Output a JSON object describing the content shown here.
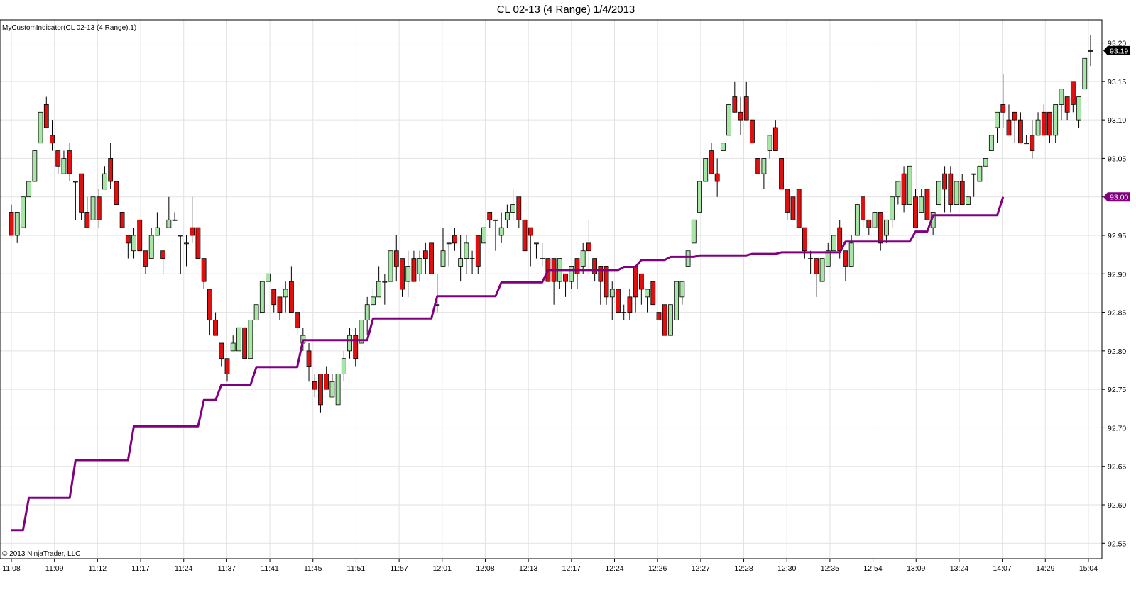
{
  "chart_title": "CL 02-13 (4 Range)  1/4/2013",
  "indicator_label": "MyCustomIndicator(CL 02-13 (4 Range),1)",
  "copyright": "© 2013 NinjaTrader, LLC",
  "price_badge": "93.19",
  "indicator_badge": "93.00",
  "colors": {
    "up": "#a8e6a8",
    "down": "#e01010",
    "indicator": "#800080",
    "grid": "#e2e2e2",
    "badge": "#000000",
    "indicator_badge": "#800080"
  },
  "chart_data": {
    "type": "candlestick",
    "ylim": [
      92.53,
      93.23
    ],
    "yticks": [
      92.55,
      92.6,
      92.65,
      92.7,
      92.75,
      92.8,
      92.85,
      92.9,
      92.95,
      93.0,
      93.05,
      93.1,
      93.15,
      93.2
    ],
    "xticks": [
      "11:08",
      "11:09",
      "11:12",
      "11:17",
      "11:24",
      "11:37",
      "11:41",
      "11:45",
      "11:51",
      "11:57",
      "12:01",
      "12:08",
      "12:13",
      "12:17",
      "12:24",
      "12:26",
      "12:27",
      "12:28",
      "12:30",
      "12:35",
      "12:54",
      "13:09",
      "13:24",
      "14:07",
      "14:29",
      "15:04"
    ],
    "candles": [
      [
        92.98,
        92.95,
        92.99,
        92.95
      ],
      [
        92.95,
        92.98,
        92.98,
        92.94
      ],
      [
        92.96,
        93.0,
        93.0,
        92.96
      ],
      [
        93.0,
        93.02,
        93.02,
        93.0
      ],
      [
        93.02,
        93.06,
        93.06,
        93.02
      ],
      [
        93.07,
        93.11,
        93.11,
        93.07
      ],
      [
        93.12,
        93.09,
        93.13,
        93.09
      ],
      [
        93.08,
        93.07,
        93.1,
        93.06
      ],
      [
        93.06,
        93.04,
        93.06,
        93.03
      ],
      [
        93.03,
        93.05,
        93.06,
        93.03
      ],
      [
        93.06,
        93.03,
        93.07,
        93.02
      ],
      [
        93.02,
        93.02,
        93.02,
        92.97
      ],
      [
        93.03,
        92.98,
        93.03,
        92.97
      ],
      [
        92.98,
        92.96,
        93.0,
        92.96
      ],
      [
        92.97,
        93.0,
        93.0,
        92.97
      ],
      [
        93.0,
        92.97,
        93.01,
        92.96
      ],
      [
        93.01,
        93.03,
        93.04,
        93.01
      ],
      [
        93.05,
        93.02,
        93.07,
        93.01
      ],
      [
        93.02,
        92.99,
        93.02,
        92.99
      ],
      [
        92.98,
        92.96,
        92.98,
        92.96
      ],
      [
        92.95,
        92.94,
        92.95,
        92.92
      ],
      [
        92.93,
        92.95,
        92.96,
        92.92
      ],
      [
        92.97,
        92.93,
        92.97,
        92.93
      ],
      [
        92.93,
        92.91,
        92.93,
        92.9
      ],
      [
        92.92,
        92.95,
        92.96,
        92.92
      ],
      [
        92.95,
        92.96,
        92.98,
        92.95
      ],
      [
        92.93,
        92.92,
        92.93,
        92.9
      ],
      [
        92.96,
        92.97,
        93.0,
        92.96
      ],
      [
        92.97,
        92.97,
        92.98,
        92.97
      ],
      [
        92.95,
        92.95,
        92.95,
        92.9
      ],
      [
        92.94,
        92.94,
        92.95,
        92.91
      ],
      [
        92.96,
        92.95,
        93.0,
        92.94
      ],
      [
        92.96,
        92.92,
        92.96,
        92.92
      ],
      [
        92.92,
        92.89,
        92.92,
        92.88
      ],
      [
        92.88,
        92.84,
        92.88,
        92.82
      ],
      [
        92.84,
        92.82,
        92.85,
        92.82
      ],
      [
        92.81,
        92.79,
        92.81,
        92.78
      ],
      [
        92.79,
        92.77,
        92.79,
        92.76
      ],
      [
        92.8,
        92.81,
        92.82,
        92.8
      ],
      [
        92.8,
        92.83,
        92.83,
        92.8
      ],
      [
        92.83,
        92.79,
        92.83,
        92.79
      ],
      [
        92.79,
        92.84,
        92.84,
        92.79
      ],
      [
        92.84,
        92.86,
        92.86,
        92.84
      ],
      [
        92.85,
        92.89,
        92.89,
        92.85
      ],
      [
        92.89,
        92.9,
        92.92,
        92.89
      ],
      [
        92.88,
        92.86,
        92.88,
        92.85
      ],
      [
        92.87,
        92.85,
        92.87,
        92.84
      ],
      [
        92.87,
        92.88,
        92.89,
        92.85
      ],
      [
        92.89,
        92.85,
        92.91,
        92.85
      ],
      [
        92.85,
        92.83,
        92.85,
        92.82
      ],
      [
        92.81,
        92.82,
        92.83,
        92.8
      ],
      [
        92.8,
        92.78,
        92.81,
        92.76
      ],
      [
        92.76,
        92.75,
        92.77,
        92.74
      ],
      [
        92.77,
        92.73,
        92.77,
        92.72
      ],
      [
        92.77,
        92.75,
        92.78,
        92.75
      ],
      [
        92.74,
        92.76,
        92.77,
        92.74
      ],
      [
        92.73,
        92.77,
        92.77,
        92.73
      ],
      [
        92.77,
        92.79,
        92.8,
        92.76
      ],
      [
        92.8,
        92.82,
        92.83,
        92.79
      ],
      [
        92.82,
        92.79,
        92.83,
        92.78
      ],
      [
        92.81,
        92.84,
        92.84,
        92.81
      ],
      [
        92.84,
        92.86,
        92.87,
        92.82
      ],
      [
        92.86,
        92.87,
        92.88,
        92.86
      ],
      [
        92.87,
        92.89,
        92.91,
        92.87
      ],
      [
        92.89,
        92.89,
        92.9,
        92.86
      ],
      [
        92.89,
        92.93,
        92.93,
        92.89
      ],
      [
        92.93,
        92.91,
        92.95,
        92.89
      ],
      [
        92.92,
        92.88,
        92.92,
        92.87
      ],
      [
        92.89,
        92.91,
        92.93,
        92.87
      ],
      [
        92.92,
        92.89,
        92.93,
        92.89
      ],
      [
        92.9,
        92.92,
        92.93,
        92.89
      ],
      [
        92.93,
        92.92,
        92.94,
        92.9
      ],
      [
        92.94,
        92.9,
        92.94,
        92.9
      ],
      [
        92.86,
        92.86,
        92.9,
        92.85
      ],
      [
        92.91,
        92.93,
        92.96,
        92.91
      ],
      [
        92.94,
        92.94,
        92.94,
        92.91
      ],
      [
        92.95,
        92.94,
        92.96,
        92.93
      ],
      [
        92.91,
        92.92,
        92.95,
        92.89
      ],
      [
        92.92,
        92.94,
        92.95,
        92.9
      ],
      [
        92.92,
        92.92,
        92.93,
        92.9
      ],
      [
        92.95,
        92.91,
        92.95,
        92.9
      ],
      [
        92.94,
        92.96,
        92.97,
        92.94
      ],
      [
        92.98,
        92.97,
        92.98,
        92.96
      ],
      [
        92.97,
        92.97,
        92.97,
        92.93
      ],
      [
        92.95,
        92.96,
        92.98,
        92.94
      ],
      [
        92.97,
        92.98,
        92.99,
        92.96
      ],
      [
        92.98,
        92.99,
        93.01,
        92.97
      ],
      [
        93.0,
        92.97,
        93.0,
        92.96
      ],
      [
        92.97,
        92.93,
        92.97,
        92.93
      ],
      [
        92.96,
        92.95,
        92.96,
        92.91
      ],
      [
        92.94,
        92.94,
        92.94,
        92.92
      ],
      [
        92.92,
        92.92,
        92.94,
        92.91
      ],
      [
        92.92,
        92.89,
        92.92,
        92.89
      ],
      [
        92.92,
        92.89,
        92.92,
        92.86
      ],
      [
        92.89,
        92.92,
        92.92,
        92.88
      ],
      [
        92.9,
        92.89,
        92.9,
        92.87
      ],
      [
        92.89,
        92.91,
        92.91,
        92.88
      ],
      [
        92.92,
        92.9,
        92.92,
        92.88
      ],
      [
        92.91,
        92.93,
        92.94,
        92.9
      ],
      [
        92.94,
        92.93,
        92.97,
        92.9
      ],
      [
        92.92,
        92.9,
        92.92,
        92.89
      ],
      [
        92.91,
        92.89,
        92.91,
        92.86
      ],
      [
        92.91,
        92.87,
        92.91,
        92.86
      ],
      [
        92.87,
        92.88,
        92.89,
        92.84
      ],
      [
        92.88,
        92.85,
        92.89,
        92.85
      ],
      [
        92.85,
        92.85,
        92.86,
        92.84
      ],
      [
        92.87,
        92.85,
        92.88,
        92.84
      ],
      [
        92.91,
        92.87,
        92.91,
        92.85
      ],
      [
        92.9,
        92.88,
        92.9,
        92.86
      ],
      [
        92.87,
        92.88,
        92.88,
        92.85
      ],
      [
        92.89,
        92.86,
        92.89,
        92.86
      ],
      [
        92.85,
        92.84,
        92.85,
        92.84
      ],
      [
        92.86,
        92.82,
        92.86,
        92.82
      ],
      [
        92.82,
        92.86,
        92.86,
        92.82
      ],
      [
        92.84,
        92.89,
        92.89,
        92.84
      ],
      [
        92.87,
        92.89,
        92.89,
        92.86
      ],
      [
        92.91,
        92.93,
        92.93,
        92.91
      ],
      [
        92.94,
        92.97,
        92.97,
        92.94
      ],
      [
        92.98,
        93.02,
        93.02,
        92.98
      ],
      [
        93.02,
        93.05,
        93.05,
        93.02
      ],
      [
        93.06,
        93.03,
        93.07,
        93.03
      ],
      [
        93.03,
        93.02,
        93.05,
        93.0
      ],
      [
        93.06,
        93.07,
        93.07,
        93.06
      ],
      [
        93.08,
        93.12,
        93.12,
        93.08
      ],
      [
        93.13,
        93.11,
        93.15,
        93.11
      ],
      [
        93.11,
        93.1,
        93.13,
        93.08
      ],
      [
        93.13,
        93.1,
        93.15,
        93.1
      ],
      [
        93.1,
        93.07,
        93.1,
        93.07
      ],
      [
        93.05,
        93.03,
        93.05,
        93.03
      ],
      [
        93.03,
        93.05,
        93.05,
        93.01
      ],
      [
        93.06,
        93.08,
        93.08,
        93.05
      ],
      [
        93.09,
        93.06,
        93.1,
        93.06
      ],
      [
        93.05,
        93.01,
        93.05,
        93.01
      ],
      [
        93.01,
        92.98,
        93.01,
        92.97
      ],
      [
        93.0,
        92.97,
        93.0,
        92.97
      ],
      [
        93.01,
        92.96,
        93.01,
        92.96
      ],
      [
        92.96,
        92.93,
        92.96,
        92.92
      ],
      [
        92.92,
        92.92,
        92.93,
        92.9
      ],
      [
        92.92,
        92.9,
        92.92,
        92.87
      ],
      [
        92.89,
        92.92,
        92.92,
        92.89
      ],
      [
        92.91,
        92.93,
        92.94,
        92.91
      ],
      [
        92.93,
        92.95,
        92.95,
        92.93
      ],
      [
        92.96,
        92.93,
        92.97,
        92.92
      ],
      [
        92.93,
        92.91,
        92.93,
        92.89
      ],
      [
        92.91,
        92.94,
        92.95,
        92.91
      ],
      [
        92.95,
        92.99,
        92.99,
        92.95
      ],
      [
        93.0,
        92.97,
        93.0,
        92.96
      ],
      [
        92.97,
        92.96,
        92.97,
        92.95
      ],
      [
        92.96,
        92.98,
        92.98,
        92.96
      ],
      [
        92.98,
        92.94,
        92.98,
        92.93
      ],
      [
        92.95,
        92.97,
        92.97,
        92.94
      ],
      [
        92.97,
        93.0,
        93.0,
        92.96
      ],
      [
        93.0,
        93.02,
        93.02,
        92.99
      ],
      [
        93.03,
        92.99,
        93.04,
        92.98
      ],
      [
        92.99,
        93.04,
        93.04,
        92.99
      ],
      [
        93.0,
        92.96,
        93.01,
        92.96
      ],
      [
        92.98,
        93.0,
        93.01,
        92.98
      ],
      [
        93.01,
        92.97,
        93.01,
        92.97
      ],
      [
        92.96,
        92.98,
        92.98,
        92.95
      ],
      [
        92.99,
        93.02,
        93.02,
        92.99
      ],
      [
        93.03,
        93.01,
        93.04,
        92.98
      ],
      [
        93.03,
        92.99,
        93.04,
        92.98
      ],
      [
        92.99,
        93.02,
        93.02,
        92.99
      ],
      [
        93.02,
        92.99,
        93.03,
        92.99
      ],
      [
        92.99,
        93.0,
        93.01,
        92.99
      ],
      [
        93.03,
        93.03,
        93.03,
        93.0
      ],
      [
        93.02,
        93.04,
        93.04,
        93.02
      ],
      [
        93.04,
        93.05,
        93.05,
        93.04
      ],
      [
        93.06,
        93.08,
        93.08,
        93.06
      ],
      [
        93.09,
        93.11,
        93.11,
        93.07
      ],
      [
        93.12,
        93.11,
        93.16,
        93.09
      ],
      [
        93.1,
        93.08,
        93.12,
        93.08
      ],
      [
        93.11,
        93.1,
        93.11,
        93.07
      ],
      [
        93.1,
        93.07,
        93.11,
        93.07
      ],
      [
        93.07,
        93.07,
        93.08,
        93.07
      ],
      [
        93.08,
        93.06,
        93.1,
        93.05
      ],
      [
        93.08,
        93.1,
        93.11,
        93.08
      ],
      [
        93.11,
        93.08,
        93.12,
        93.08
      ],
      [
        93.11,
        93.08,
        93.11,
        93.07
      ],
      [
        93.08,
        93.12,
        93.12,
        93.07
      ],
      [
        93.12,
        93.14,
        93.14,
        93.1
      ],
      [
        93.13,
        93.11,
        93.13,
        93.1
      ],
      [
        93.15,
        93.12,
        93.15,
        93.11
      ],
      [
        93.1,
        93.13,
        93.13,
        93.09
      ],
      [
        93.14,
        93.18,
        93.18,
        93.14
      ],
      [
        93.19,
        93.19,
        93.21,
        93.17
      ]
    ],
    "indicator": [
      92.567,
      92.567,
      92.567,
      92.609,
      92.609,
      92.609,
      92.609,
      92.609,
      92.609,
      92.609,
      92.609,
      92.658,
      92.658,
      92.658,
      92.658,
      92.658,
      92.658,
      92.658,
      92.658,
      92.658,
      92.658,
      92.702,
      92.702,
      92.702,
      92.702,
      92.702,
      92.702,
      92.702,
      92.702,
      92.702,
      92.702,
      92.702,
      92.702,
      92.736,
      92.736,
      92.736,
      92.756,
      92.756,
      92.756,
      92.756,
      92.756,
      92.756,
      92.779,
      92.779,
      92.779,
      92.779,
      92.779,
      92.779,
      92.779,
      92.779,
      92.814,
      92.814,
      92.814,
      92.814,
      92.814,
      92.814,
      92.814,
      92.814,
      92.814,
      92.814,
      92.814,
      92.814,
      92.842,
      92.842,
      92.842,
      92.842,
      92.842,
      92.842,
      92.842,
      92.842,
      92.842,
      92.842,
      92.842,
      92.871,
      92.871,
      92.871,
      92.871,
      92.871,
      92.871,
      92.871,
      92.871,
      92.871,
      92.871,
      92.871,
      92.889,
      92.889,
      92.889,
      92.889,
      92.889,
      92.889,
      92.889,
      92.889,
      92.905,
      92.905,
      92.905,
      92.905,
      92.905,
      92.905,
      92.905,
      92.905,
      92.905,
      92.905,
      92.905,
      92.905,
      92.905,
      92.909,
      92.909,
      92.909,
      92.918,
      92.918,
      92.918,
      92.918,
      92.918,
      92.922,
      92.922,
      92.922,
      92.922,
      92.922,
      92.924,
      92.924,
      92.924,
      92.924,
      92.924,
      92.924,
      92.924,
      92.924,
      92.924,
      92.926,
      92.926,
      92.926,
      92.926,
      92.926,
      92.928,
      92.928,
      92.928,
      92.928,
      92.928,
      92.928,
      92.928,
      92.928,
      92.928,
      92.928,
      92.928,
      92.942,
      92.942,
      92.942,
      92.942,
      92.942,
      92.942,
      92.942,
      92.942,
      92.942,
      92.942,
      92.942,
      92.942,
      92.955,
      92.955,
      92.955,
      92.976,
      92.976,
      92.976,
      92.976,
      92.976,
      92.976,
      92.976,
      92.976,
      92.976,
      92.976,
      92.976,
      92.976,
      93.0
    ]
  }
}
